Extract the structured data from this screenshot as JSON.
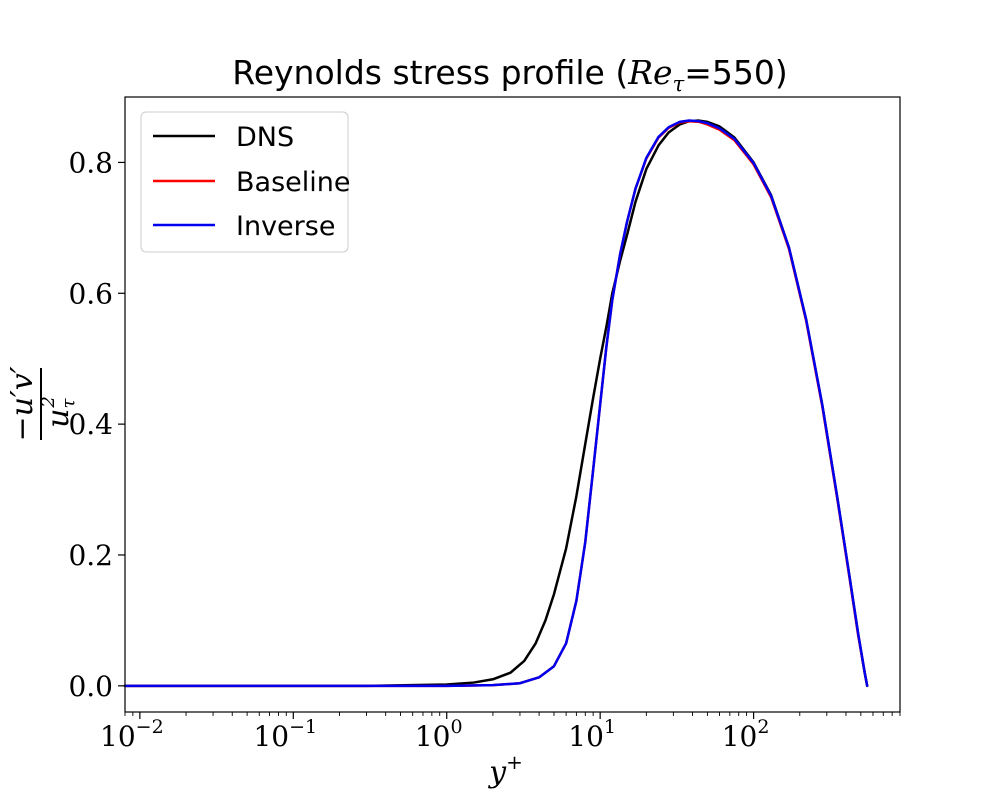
{
  "chart_data": {
    "type": "line",
    "title": "Reynolds stress profile (Re_τ=550)",
    "title_parts": {
      "prefix": "Reynolds stress profile (",
      "math_base": "Re",
      "math_sub": "τ",
      "suffix": "=550)"
    },
    "xlabel": "y+",
    "xlabel_parts": {
      "base": "y",
      "sup": "+"
    },
    "ylabel": "−u′v′ / u_τ²",
    "ylabel_parts": {
      "numerator": "−u′v′",
      "den_base": "u",
      "den_sub": "τ",
      "den_sup": "2"
    },
    "xscale": "log",
    "xlim": [
      0.008,
      900
    ],
    "ylim": [
      -0.04,
      0.9
    ],
    "xticks": [
      {
        "value": 0.01,
        "base": "10",
        "exp": "−2"
      },
      {
        "value": 0.1,
        "base": "10",
        "exp": "−1"
      },
      {
        "value": 1,
        "base": "10",
        "exp": "0"
      },
      {
        "value": 10,
        "base": "10",
        "exp": "1"
      },
      {
        "value": 100,
        "base": "10",
        "exp": "2"
      }
    ],
    "yticks": [
      {
        "value": 0.0,
        "label": "0.0"
      },
      {
        "value": 0.2,
        "label": "0.2"
      },
      {
        "value": 0.4,
        "label": "0.4"
      },
      {
        "value": 0.6,
        "label": "0.6"
      },
      {
        "value": 0.8,
        "label": "0.8"
      }
    ],
    "legend": {
      "position": "top-left"
    },
    "grid": false,
    "series": [
      {
        "name": "DNS",
        "color": "#000000",
        "x": [
          0.008,
          0.05,
          0.3,
          1.0,
          1.5,
          2.0,
          2.6,
          3.2,
          3.8,
          4.4,
          5.0,
          6.0,
          7.0,
          8.0,
          9.0,
          10.0,
          11.0,
          12.0,
          13.5,
          15.0,
          17.0,
          20.0,
          24.0,
          28.0,
          33.0,
          38.0,
          44.0,
          50.0,
          60.0,
          75.0,
          100.0,
          130.0,
          170.0,
          220.0,
          280.0,
          350.0,
          420.0,
          480.0,
          530.0,
          550.0
        ],
        "y": [
          0.0,
          0.0,
          0.0,
          0.002,
          0.005,
          0.01,
          0.02,
          0.038,
          0.065,
          0.1,
          0.14,
          0.21,
          0.29,
          0.37,
          0.44,
          0.5,
          0.55,
          0.6,
          0.65,
          0.69,
          0.74,
          0.79,
          0.826,
          0.846,
          0.858,
          0.863,
          0.864,
          0.862,
          0.855,
          0.838,
          0.8,
          0.75,
          0.67,
          0.56,
          0.43,
          0.29,
          0.17,
          0.08,
          0.02,
          0.0
        ]
      },
      {
        "name": "Baseline",
        "color": "#ff0000",
        "x": [
          0.008,
          0.05,
          0.3,
          1.0,
          2.0,
          3.0,
          4.0,
          5.0,
          6.0,
          7.0,
          8.0,
          9.0,
          10.0,
          11.0,
          12.0,
          13.5,
          15.0,
          17.0,
          20.0,
          24.0,
          28.0,
          33.0,
          38.0,
          44.0,
          50.0,
          60.0,
          75.0,
          100.0,
          130.0,
          170.0,
          220.0,
          280.0,
          350.0,
          420.0,
          480.0,
          530.0,
          550.0
        ],
        "y": [
          0.0,
          0.0,
          0.0,
          0.0,
          0.001,
          0.004,
          0.013,
          0.03,
          0.065,
          0.13,
          0.22,
          0.33,
          0.43,
          0.52,
          0.59,
          0.66,
          0.71,
          0.76,
          0.806,
          0.838,
          0.853,
          0.861,
          0.863,
          0.862,
          0.858,
          0.85,
          0.834,
          0.797,
          0.747,
          0.668,
          0.558,
          0.428,
          0.288,
          0.168,
          0.078,
          0.02,
          0.0
        ]
      },
      {
        "name": "Inverse",
        "color": "#0000ee",
        "x": [
          0.008,
          0.05,
          0.3,
          1.0,
          2.0,
          3.0,
          4.0,
          5.0,
          6.0,
          7.0,
          8.0,
          9.0,
          10.0,
          11.0,
          12.0,
          13.5,
          15.0,
          17.0,
          20.0,
          24.0,
          28.0,
          33.0,
          38.0,
          44.0,
          50.0,
          60.0,
          75.0,
          100.0,
          130.0,
          170.0,
          220.0,
          280.0,
          350.0,
          420.0,
          480.0,
          530.0,
          550.0
        ],
        "y": [
          0.0,
          0.0,
          0.0,
          0.0,
          0.001,
          0.004,
          0.013,
          0.03,
          0.065,
          0.13,
          0.22,
          0.33,
          0.43,
          0.52,
          0.59,
          0.66,
          0.71,
          0.76,
          0.807,
          0.839,
          0.854,
          0.862,
          0.864,
          0.863,
          0.86,
          0.852,
          0.836,
          0.799,
          0.749,
          0.67,
          0.56,
          0.43,
          0.29,
          0.17,
          0.08,
          0.02,
          0.0
        ]
      }
    ]
  }
}
